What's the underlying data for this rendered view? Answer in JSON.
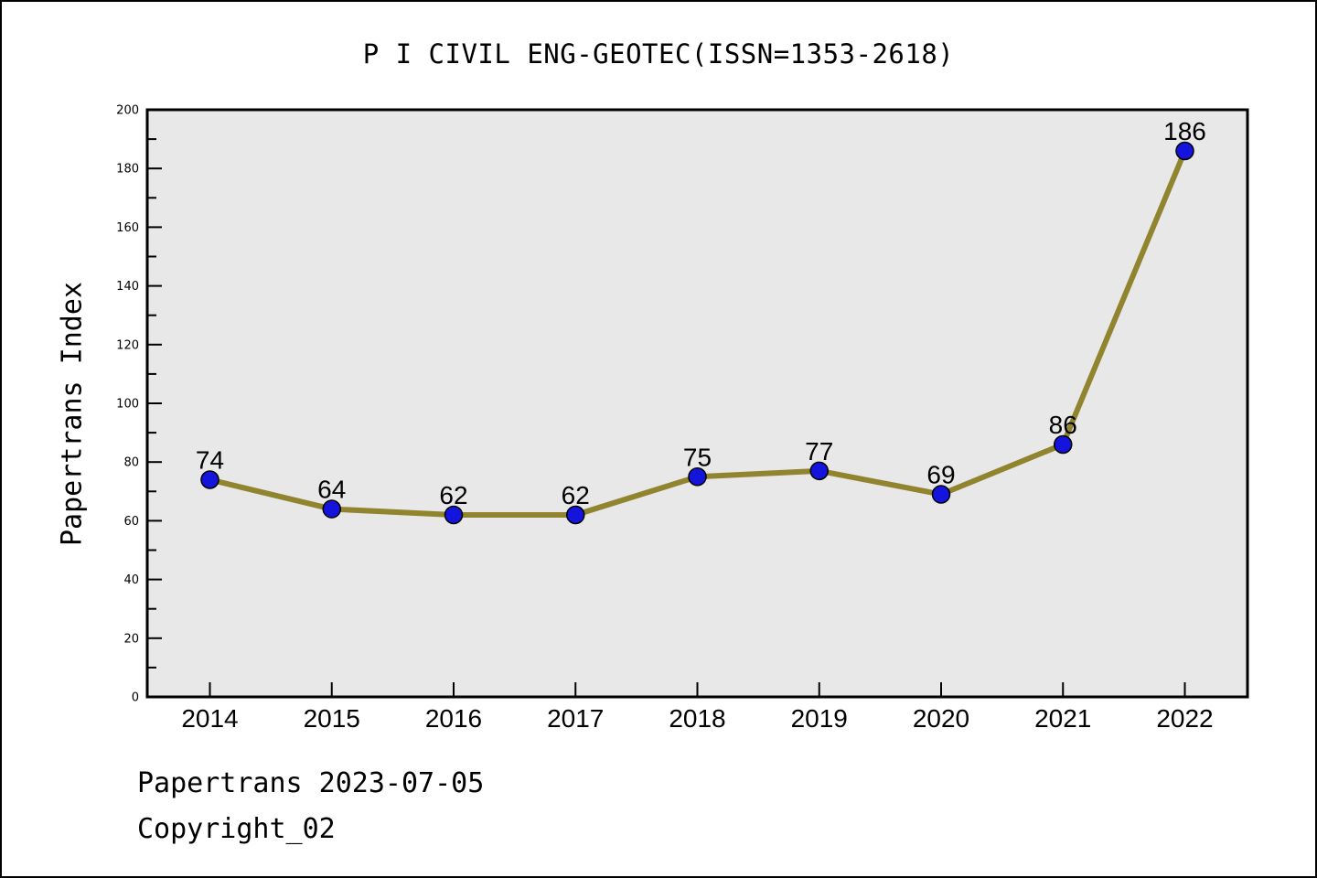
{
  "title": "P I CIVIL ENG-GEOTEC(ISSN=1353-2618)",
  "footer": {
    "line1": "Papertrans 2023-07-05",
    "line2": "Copyright_02"
  },
  "chart_data": {
    "type": "line",
    "title": "P I CIVIL ENG-GEOTEC(ISSN=1353-2618)",
    "categories": [
      "2014",
      "2015",
      "2016",
      "2017",
      "2018",
      "2019",
      "2020",
      "2021",
      "2022"
    ],
    "values": [
      74,
      64,
      62,
      62,
      75,
      77,
      69,
      86,
      186
    ],
    "xlabel": "",
    "ylabel": "Papertrans Index",
    "ylim": [
      0,
      200
    ],
    "ytick_step": 20,
    "ytick_minor_step": 10,
    "grid": false,
    "legend_position": "none",
    "colors": {
      "line": "#90842f",
      "marker": "#1414dd",
      "marker_edge": "#000000",
      "plot_bg": "#e8e8e8",
      "axis": "#000000",
      "text": "#000000",
      "page_bg": "#ffffff"
    }
  }
}
